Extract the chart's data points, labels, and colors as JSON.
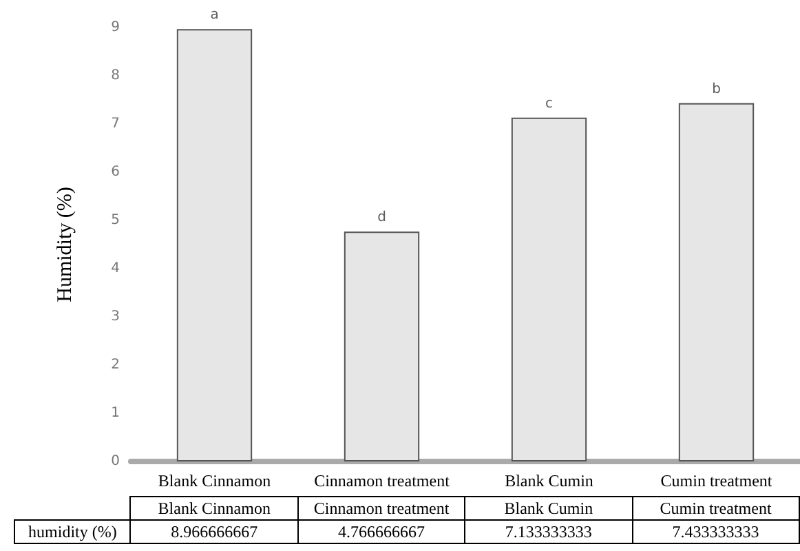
{
  "chart_data": {
    "type": "bar",
    "ylabel": "Humidity (%)",
    "categories": [
      "Blank Cinnamon",
      "Cinnamon treatment",
      "Blank Cumin",
      "Cumin treatment"
    ],
    "series": [
      {
        "name": "humidity (%)",
        "color": "#e6e6e6",
        "values": [
          8.966666667,
          4.766666667,
          7.133333333,
          7.433333333
        ]
      }
    ],
    "ylim": [
      0,
      9
    ],
    "yticks": [
      0,
      1,
      2,
      3,
      4,
      5,
      6,
      7,
      8,
      9
    ],
    "grid": false,
    "legend": false,
    "data_labels": true,
    "annotations": [
      {
        "text": "a",
        "x": "Blank Cinnamon",
        "y": 8.966666667
      },
      {
        "text": "d",
        "x": "Cinnamon treatment",
        "y": 4.766666667
      },
      {
        "text": "c",
        "x": "Blank Cumin",
        "y": 7.133333333
      },
      {
        "text": "b",
        "x": "Cumin treatment",
        "y": 7.433333333
      }
    ]
  }
}
